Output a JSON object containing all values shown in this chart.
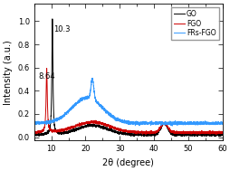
{
  "title": "",
  "xlabel": "2θ (degree)",
  "ylabel": "Intensity (a.u.)",
  "xlim": [
    5,
    60
  ],
  "legend_labels": [
    "GO",
    "FGO",
    "FRs-FGO"
  ],
  "legend_colors": [
    "black",
    "#cc0000",
    "#3399ff"
  ],
  "annotations": [
    {
      "text": "10.3",
      "x": 10.3
    },
    {
      "text": "8.64",
      "x": 8.64
    }
  ],
  "background_color": "#ffffff"
}
